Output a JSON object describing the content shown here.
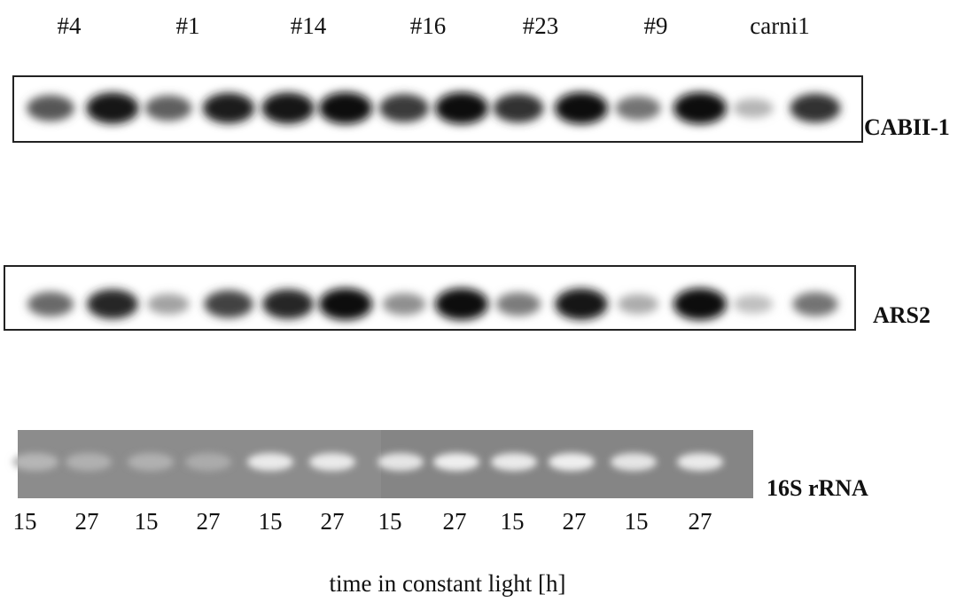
{
  "groups": [
    "#4",
    "#1",
    "#14",
    "#16",
    "#23",
    "#9",
    "carni1"
  ],
  "blots": [
    {
      "label": "CABII-1"
    },
    {
      "label": "ARS2"
    }
  ],
  "gel": {
    "label": "16S rRNA"
  },
  "times": [
    "15",
    "27",
    "15",
    "27",
    "15",
    "27",
    "15",
    "27",
    "15",
    "27",
    "15",
    "27"
  ],
  "caption": "time in constant light [h]"
}
